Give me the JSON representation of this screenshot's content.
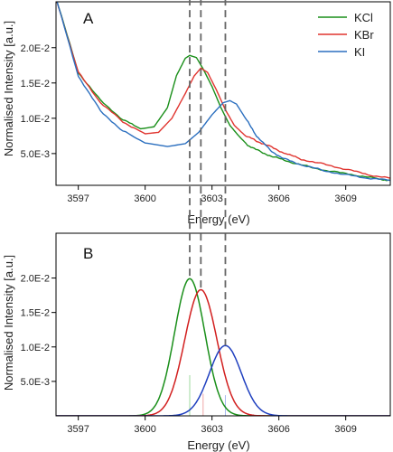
{
  "chart_data": [
    {
      "panel": "A",
      "type": "line",
      "xlabel": "Energy (eV)",
      "ylabel": "Normalised Intensity [a.u.]",
      "xlim": [
        3596,
        3611
      ],
      "ylim": [
        0.0005,
        0.0265
      ],
      "x_ticks": [
        "3597",
        "3600",
        "3603",
        "3606",
        "3609"
      ],
      "x_tick_values": [
        3597,
        3600,
        3603,
        3606,
        3609
      ],
      "y_ticks": [
        "5.0E-3",
        "1.0E-2",
        "1.5E-2",
        "2.0E-2"
      ],
      "y_tick_values": [
        0.005,
        0.01,
        0.015,
        0.02
      ],
      "legend": {
        "position": "top-right",
        "entries": [
          "KCl",
          "KBr",
          "KI"
        ]
      },
      "series": [
        {
          "name": "KCl",
          "color": "#1a8f1a",
          "x": [
            3596.0,
            3597.0,
            3598.0,
            3599.0,
            3599.8,
            3600.4,
            3601.0,
            3601.4,
            3601.8,
            3602.0,
            3602.3,
            3602.6,
            3603.0,
            3603.4,
            3603.8,
            3604.2,
            3604.6,
            3605.2,
            3605.8,
            3606.5,
            3607.5,
            3608.5,
            3609.5,
            3610.5,
            3611.0
          ],
          "y": [
            0.027,
            0.0165,
            0.0125,
            0.0098,
            0.0085,
            0.0088,
            0.0115,
            0.016,
            0.0185,
            0.0189,
            0.0186,
            0.017,
            0.0145,
            0.0115,
            0.009,
            0.0075,
            0.0062,
            0.0052,
            0.0045,
            0.0038,
            0.003,
            0.0024,
            0.0019,
            0.0014,
            0.0012
          ]
        },
        {
          "name": "KBr",
          "color": "#e0342f",
          "x": [
            3596.0,
            3597.0,
            3598.0,
            3599.0,
            3600.0,
            3600.6,
            3601.2,
            3601.8,
            3602.2,
            3602.5,
            3602.8,
            3603.2,
            3603.6,
            3604.0,
            3604.5,
            3605.0,
            3605.6,
            3606.3,
            3607.0,
            3608.0,
            3609.0,
            3610.0,
            3611.0
          ],
          "y": [
            0.027,
            0.0165,
            0.0122,
            0.0095,
            0.0078,
            0.008,
            0.01,
            0.0135,
            0.016,
            0.0171,
            0.0165,
            0.014,
            0.0112,
            0.009,
            0.0075,
            0.0068,
            0.006,
            0.005,
            0.0042,
            0.0035,
            0.0028,
            0.002,
            0.0015
          ]
        },
        {
          "name": "KI",
          "color": "#2b6fbf",
          "x": [
            3596.0,
            3597.0,
            3598.0,
            3599.0,
            3600.0,
            3601.0,
            3601.8,
            3602.4,
            3603.0,
            3603.5,
            3603.8,
            3604.1,
            3604.5,
            3605.0,
            3605.6,
            3606.2,
            3607.0,
            3608.0,
            3609.0,
            3610.0,
            3611.0
          ],
          "y": [
            0.027,
            0.016,
            0.011,
            0.0082,
            0.0065,
            0.006,
            0.0064,
            0.008,
            0.0105,
            0.0122,
            0.0125,
            0.012,
            0.01,
            0.0075,
            0.0055,
            0.0043,
            0.0034,
            0.0026,
            0.002,
            0.0015,
            0.0012
          ]
        }
      ]
    },
    {
      "panel": "B",
      "type": "line",
      "xlabel": "Energy (eV)",
      "ylabel": "Normalised Intensity [a.u.]",
      "xlim": [
        3596,
        3611
      ],
      "ylim": [
        0.0,
        0.0265
      ],
      "x_ticks": [
        "3597",
        "3600",
        "3603",
        "3606",
        "3609"
      ],
      "x_tick_values": [
        3597,
        3600,
        3603,
        3606,
        3609
      ],
      "y_ticks": [
        "5.0E-3",
        "1.0E-2",
        "1.5E-2",
        "2.0E-2"
      ],
      "y_tick_values": [
        0.005,
        0.01,
        0.015,
        0.02
      ],
      "series": [
        {
          "name": "KCl",
          "color": "#1a8f1a",
          "peak_center": 3602.0,
          "peak_height": 0.0199,
          "peak_sigma": 0.68
        },
        {
          "name": "KBr",
          "color": "#d21f1f",
          "peak_center": 3602.5,
          "peak_height": 0.0183,
          "peak_sigma": 0.72
        },
        {
          "name": "KI",
          "color": "#1f3fbf",
          "peak_center": 3603.6,
          "peak_height": 0.0102,
          "peak_sigma": 0.72
        }
      ],
      "stick_lines": [
        {
          "x": 3602.0,
          "height": 0.0059,
          "color": "#9fd89f"
        },
        {
          "x": 3602.6,
          "height": 0.0032,
          "color": "#f0a7a7"
        },
        {
          "x": 3603.6,
          "height": 0.003,
          "color": "#a7b7f0"
        }
      ]
    }
  ],
  "peak_guides": [
    3602.0,
    3602.5,
    3603.6
  ],
  "labels": {
    "panel_a": "A",
    "panel_b": "B",
    "xlabel_a": "Energy (eV)",
    "xlabel_b": "Energy (eV)",
    "ylabel_a": "Normalised Intensity [a.u.]",
    "ylabel_b": "Normalised Intensity [a.u.]",
    "legend": [
      "KCl",
      "KBr",
      "KI"
    ]
  }
}
